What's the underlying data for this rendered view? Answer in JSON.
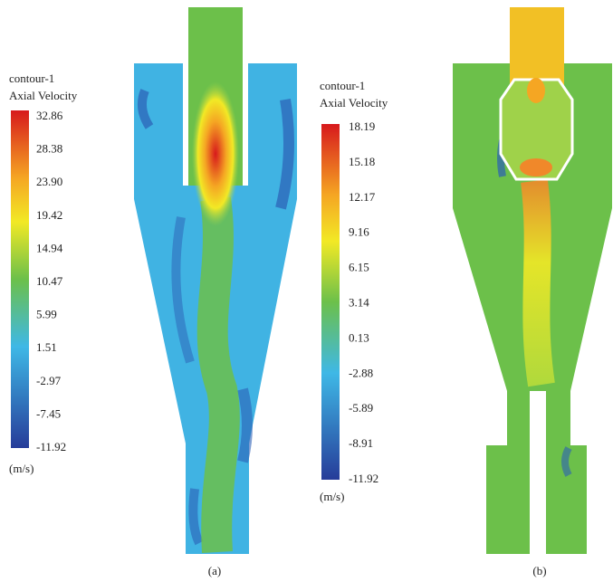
{
  "panels": [
    {
      "title": "contour-1",
      "subtitle": "Axial Velocity",
      "scale": [
        "32.86",
        "28.38",
        "23.90",
        "19.42",
        "14.94",
        "10.47",
        "5.99",
        "1.51",
        "-2.97",
        "-7.45",
        "-11.92"
      ],
      "unit": "(m/s)",
      "label": "(a)"
    },
    {
      "title": "contour-1",
      "subtitle": "Axial Velocity",
      "scale": [
        "18.19",
        "15.18",
        "12.17",
        "9.16",
        "6.15",
        "3.14",
        "0.13",
        "-2.88",
        "-5.89",
        "-8.91",
        "-11.92"
      ],
      "unit": "(m/s)",
      "label": "(b)"
    }
  ]
}
